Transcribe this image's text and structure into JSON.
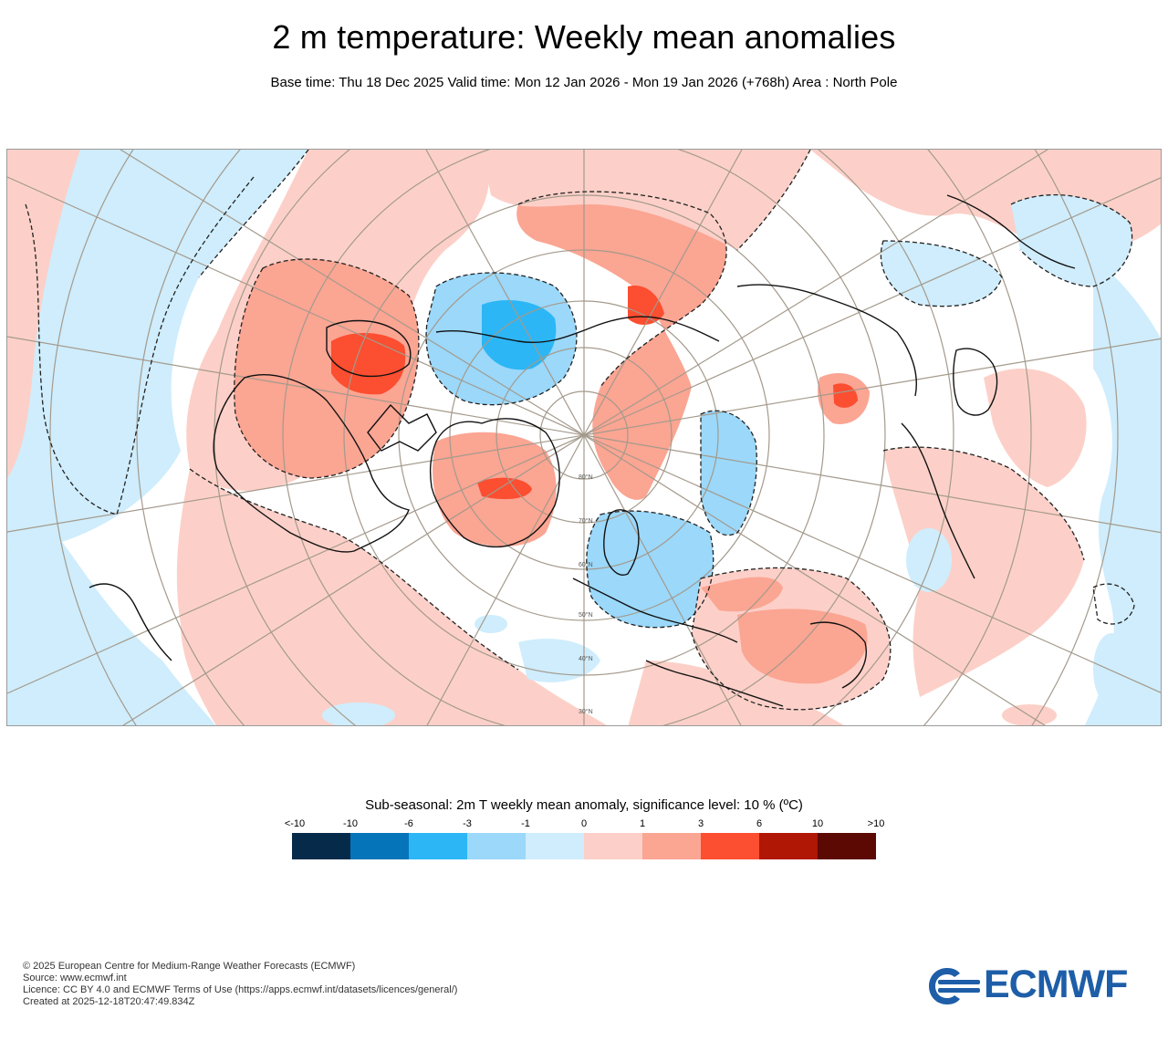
{
  "header": {
    "title": "2 m temperature: Weekly mean anomalies",
    "subtitle": "Base time: Thu 18 Dec 2025 Valid time: Mon 12 Jan 2026 - Mon 19 Jan 2026 (+768h) Area : North Pole"
  },
  "map": {
    "latitude_labels": [
      "80°N",
      "70°N",
      "60°N",
      "50°N",
      "40°N",
      "30°N"
    ]
  },
  "legend": {
    "title": "Sub-seasonal: 2m T weekly mean anomaly, significance level: 10 % (ºC)",
    "ticks": [
      "<-10",
      "-10",
      "-6",
      "-3",
      "-1",
      "0",
      "1",
      "3",
      "6",
      "10",
      ">10"
    ],
    "colors": [
      "#062b4a",
      "#0574b9",
      "#2cb6f5",
      "#9bd8fa",
      "#cfedfc",
      "#fcd0c8",
      "#fba593",
      "#fc4e30",
      "#b01704",
      "#5c0803"
    ]
  },
  "footer": {
    "copyright": "© 2025 European Centre for Medium-Range Weather Forecasts (ECMWF)",
    "source": "Source: www.ecmwf.int",
    "licence": "Licence: CC BY 4.0 and ECMWF Terms of Use (https://apps.ecmwf.int/datasets/licences/general/)",
    "created": "Created at 2025-12-18T20:47:49.834Z"
  },
  "logo": {
    "text": "ECMWF",
    "color": "#1e5ea8"
  }
}
